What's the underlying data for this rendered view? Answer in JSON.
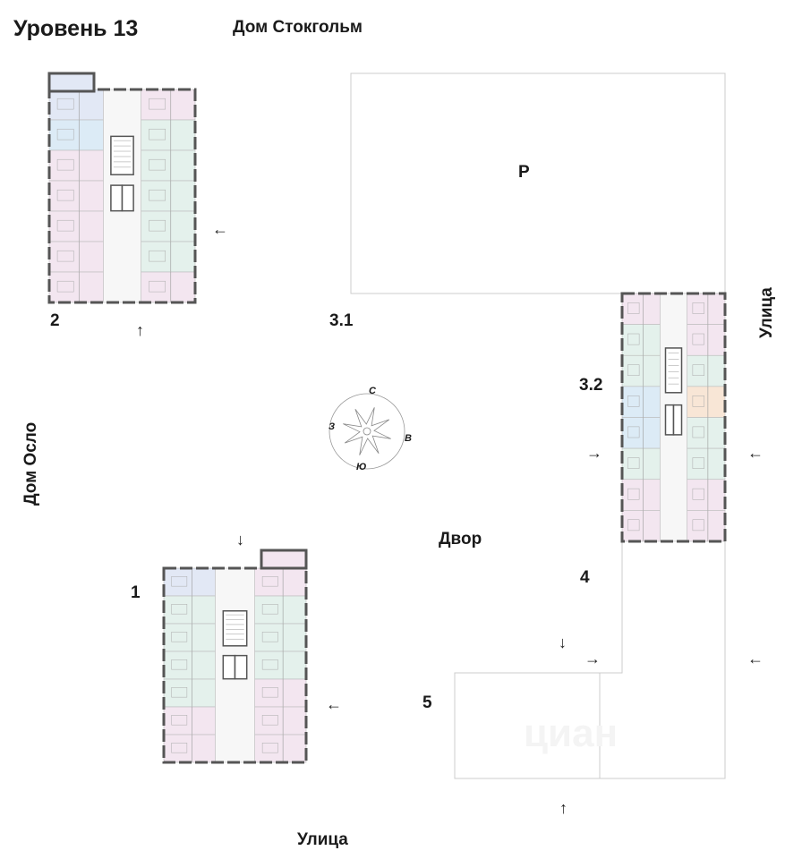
{
  "title": "Уровень 13",
  "labels": {
    "stockholm": "Дом Стокгольм",
    "oslo": "Дом Осло",
    "street_right": "Улица",
    "street_bottom": "Улица",
    "yard": "Двор",
    "parking": "P"
  },
  "buildings": {
    "b1": "1",
    "b2": "2",
    "b31": "3.1",
    "b32": "3.2",
    "b4": "4",
    "b5": "5"
  },
  "compass": {
    "n": "С",
    "s": "Ю",
    "w": "З",
    "e": "В"
  },
  "arrows": {
    "left": "←",
    "right": "→",
    "up": "↑",
    "down": "↓"
  },
  "watermark": "циан",
  "colors": {
    "pink": "#f3e6f0",
    "green": "#e4f1ec",
    "blue": "#e2e8f5",
    "lightblue": "#dcebf6",
    "orange": "#f8e6d6",
    "wall": "#555555",
    "outline": "#cccccc"
  }
}
